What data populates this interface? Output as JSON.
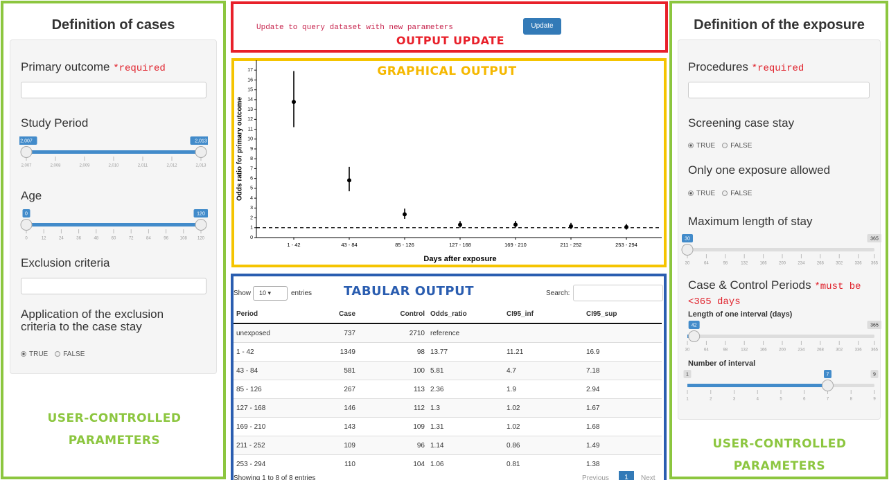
{
  "left": {
    "title": "Definition of cases",
    "primary_outcome": {
      "label": "Primary outcome",
      "required": "*required"
    },
    "study_period": {
      "label": "Study Period",
      "slider": {
        "range": [
          2007,
          2013
        ],
        "values": [
          2007,
          2013
        ],
        "value_labels": [
          "2,007",
          "2,013"
        ],
        "ticks": [
          {
            "value": 2007,
            "label": "2,007"
          },
          {
            "value": 2008,
            "label": "2,008"
          },
          {
            "value": 2009,
            "label": "2,009"
          },
          {
            "value": 2010,
            "label": "2,010"
          },
          {
            "value": 2011,
            "label": "2,011"
          },
          {
            "value": 2012,
            "label": "2,012"
          },
          {
            "value": 2013,
            "label": "2,013"
          }
        ]
      }
    },
    "age": {
      "label": "Age",
      "slider": {
        "range": [
          0,
          120
        ],
        "values": [
          0,
          120
        ],
        "ticks": [
          0,
          12,
          24,
          36,
          48,
          60,
          72,
          84,
          96,
          108,
          120
        ]
      }
    },
    "exclusion": {
      "label": "Exclusion criteria"
    },
    "application": {
      "label": "Application of the exclusion criteria to the case stay",
      "radio": {
        "options": [
          "TRUE",
          "FALSE"
        ],
        "selected": 0
      }
    },
    "annotation": "USER-CONTROLLED PARAMETERS"
  },
  "update": {
    "text": "Update to query dataset with new parameters",
    "button": "Update",
    "annotation": "OUTPUT UPDATE"
  },
  "chart_data": {
    "type": "errorbar",
    "annotation": "GRAPHICAL OUTPUT",
    "x_label": "Days after exposure",
    "y_label": "Odds ratio for primary outcome",
    "categories": [
      "1 - 42",
      "43 - 84",
      "85 - 126",
      "127 - 168",
      "169 - 210",
      "211 - 252",
      "253 - 294"
    ],
    "values": [
      13.77,
      5.81,
      2.36,
      1.3,
      1.31,
      1.14,
      1.06
    ],
    "ci_low": [
      11.21,
      4.7,
      1.9,
      1.02,
      1.02,
      0.86,
      0.81
    ],
    "ci_high": [
      16.9,
      7.18,
      2.94,
      1.67,
      1.68,
      1.49,
      1.38
    ],
    "reference_line": 1,
    "color": "#000000",
    "ylim": [
      0,
      18
    ],
    "yticks": [
      0,
      1,
      2,
      3,
      4,
      5,
      6,
      7,
      8,
      9,
      10,
      11,
      12,
      13,
      14,
      15,
      16,
      17
    ]
  },
  "table": {
    "annotation": "TABULAR OUTPUT",
    "show": "Show",
    "length": "10",
    "entries": "entries",
    "search": "Search:",
    "columns": [
      "Period",
      "Case",
      "Control",
      "Odds_ratio",
      "CI95_inf",
      "CI95_sup"
    ],
    "rows": [
      [
        "unexposed",
        "737",
        "2710",
        "reference"
      ],
      [
        "1 - 42",
        "1349",
        "98",
        "13.77",
        "11.21",
        "16.9"
      ],
      [
        "43 - 84",
        "581",
        "100",
        "5.81",
        "4.7",
        "7.18"
      ],
      [
        "85 - 126",
        "267",
        "113",
        "2.36",
        "1.9",
        "2.94"
      ],
      [
        "127 - 168",
        "146",
        "112",
        "1.3",
        "1.02",
        "1.67"
      ],
      [
        "169 - 210",
        "143",
        "109",
        "1.31",
        "1.02",
        "1.68"
      ],
      [
        "211 - 252",
        "109",
        "96",
        "1.14",
        "0.86",
        "1.49"
      ],
      [
        "253 - 294",
        "110",
        "104",
        "1.06",
        "0.81",
        "1.38"
      ]
    ],
    "info": "Showing 1 to 8 of 8 entries",
    "pagination": [
      "Previous",
      "1",
      "Next"
    ]
  },
  "right": {
    "title": "Definition of the exposure",
    "procedures": {
      "label": "Procedures",
      "required": "*required"
    },
    "screening": {
      "label": "Screening case stay",
      "radio": {
        "options": [
          "TRUE",
          "FALSE"
        ],
        "selected": 0
      }
    },
    "one_exposure": {
      "label": "Only one exposure allowed",
      "radio": {
        "options": [
          "TRUE",
          "FALSE"
        ],
        "selected": 0
      }
    },
    "max_stay": {
      "label": "Maximum length of stay",
      "slider": {
        "range": [
          30,
          365
        ],
        "values": [
          30
        ],
        "show_max": true,
        "ticks": [
          30,
          64,
          98,
          132,
          166,
          200,
          234,
          268,
          302,
          336,
          365
        ]
      }
    },
    "periods": {
      "label": "Case & Control Periods",
      "required": "*must be <365 days"
    },
    "interval_length": {
      "label": "Length of one interval (days)",
      "slider": {
        "range": [
          30,
          365
        ],
        "values": [
          42
        ],
        "show_max": true,
        "ticks": [
          30,
          64,
          98,
          132,
          166,
          200,
          234,
          268,
          302,
          336,
          365
        ]
      }
    },
    "interval_number": {
      "label": "Number of interval",
      "slider": {
        "range": [
          1,
          9
        ],
        "values": [
          7
        ],
        "show_min": true,
        "show_max": true,
        "ticks": [
          1,
          2,
          3,
          4,
          5,
          6,
          7,
          8,
          9
        ]
      }
    },
    "annotation": "USER-CONTROLLED PARAMETERS"
  }
}
